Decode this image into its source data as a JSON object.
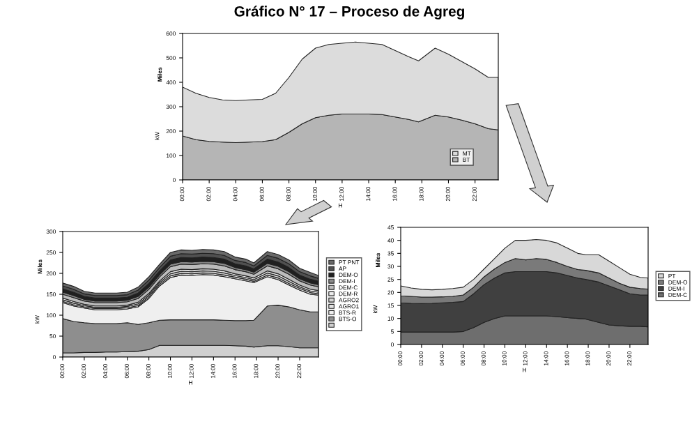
{
  "chart_data": [
    {
      "type": "area",
      "stacked": true,
      "title": "Gráfico N° 17 – Proceso de Agreg",
      "ylabel": "kW",
      "xlabel": "H",
      "annotations": [
        "Miles"
      ],
      "legend": "bottom right",
      "grid": false,
      "x": [
        0,
        1,
        2,
        3,
        4,
        5,
        6,
        7,
        8,
        9,
        10,
        11,
        12,
        13,
        14,
        15,
        16,
        17,
        17.75,
        19,
        20,
        21,
        22,
        23,
        23.75
      ],
      "xlim": [
        0,
        23.75
      ],
      "xticks": [
        {
          "value": 0,
          "label": "00:00"
        },
        {
          "value": 2,
          "label": "02:00"
        },
        {
          "value": 4,
          "label": "04:00"
        },
        {
          "value": 6,
          "label": "06:00"
        },
        {
          "value": 8,
          "label": "08:00"
        },
        {
          "value": 10,
          "label": "10:00"
        },
        {
          "value": 12,
          "label": "12:00"
        },
        {
          "value": 14,
          "label": "14:00"
        },
        {
          "value": 16,
          "label": "16:00"
        },
        {
          "value": 18,
          "label": "18:00"
        },
        {
          "value": 20,
          "label": "20:00"
        },
        {
          "value": 22,
          "label": "22:00"
        }
      ],
      "ylim": [
        0,
        600
      ],
      "yticks": [
        0,
        100,
        200,
        300,
        400,
        500,
        600
      ],
      "series": [
        {
          "name": "BT",
          "color": "#b5b5b5",
          "values": [
            180,
            165,
            158,
            155,
            153,
            155,
            157,
            165,
            195,
            230,
            255,
            265,
            270,
            270,
            270,
            268,
            258,
            248,
            238,
            265,
            258,
            245,
            230,
            210,
            205
          ]
        },
        {
          "name": "MT",
          "color": "#dcdcdc",
          "values": [
            200,
            190,
            180,
            173,
            172,
            173,
            173,
            190,
            225,
            265,
            285,
            290,
            290,
            295,
            290,
            287,
            272,
            257,
            250,
            275,
            257,
            240,
            225,
            210,
            215
          ]
        }
      ]
    },
    {
      "type": "area",
      "stacked": true,
      "ylabel": "kW",
      "xlabel": "H",
      "annotations": [
        "Miles"
      ],
      "legend": "right",
      "grid": false,
      "x": [
        0,
        1,
        2,
        3,
        4,
        5,
        6,
        7,
        8,
        9,
        10,
        11,
        12,
        13,
        14,
        15,
        16,
        17,
        17.75,
        19,
        20,
        21,
        22,
        23,
        23.75
      ],
      "xlim": [
        0,
        23.75
      ],
      "xticks": [
        {
          "value": 0,
          "label": "00:00"
        },
        {
          "value": 2,
          "label": "02:00"
        },
        {
          "value": 4,
          "label": "04:00"
        },
        {
          "value": 6,
          "label": "06:00"
        },
        {
          "value": 8,
          "label": "08:00"
        },
        {
          "value": 10,
          "label": "10:00"
        },
        {
          "value": 12,
          "label": "12:00"
        },
        {
          "value": 14,
          "label": "14:00"
        },
        {
          "value": 16,
          "label": "16:00"
        },
        {
          "value": 18,
          "label": "18:00"
        },
        {
          "value": 20,
          "label": "20:00"
        },
        {
          "value": 22,
          "label": "22:00"
        }
      ],
      "ylim": [
        0,
        300
      ],
      "yticks": [
        0,
        50,
        100,
        150,
        200,
        250,
        300
      ],
      "series": [
        {
          "color": "#d0d0d0",
          "values": [
            10,
            10,
            11,
            11,
            12,
            12,
            13,
            14,
            18,
            28,
            28,
            28,
            28,
            28,
            28,
            28,
            27,
            26,
            24,
            27,
            27,
            25,
            22,
            22,
            22
          ]
        },
        {
          "name": "BTS-O",
          "color": "#8e8e8e",
          "values": [
            82,
            75,
            71,
            69,
            68,
            68,
            69,
            64,
            64,
            60,
            61,
            61,
            61,
            61,
            61,
            60,
            60,
            61,
            64,
            95,
            97,
            95,
            91,
            86,
            86
          ]
        },
        {
          "name": "BTS-R",
          "color": "#efefef",
          "values": [
            38,
            37,
            35,
            33,
            33,
            33,
            33,
            42,
            58,
            82,
            101,
            107,
            106,
            108,
            107,
            104,
            100,
            95,
            90,
            70,
            61,
            52,
            47,
            42,
            40
          ]
        },
        {
          "name": "AGRO1",
          "color": "#e2e2e2",
          "values": [
            3,
            3,
            3,
            3,
            3,
            3,
            3,
            3,
            4,
            4,
            4,
            4,
            4,
            4,
            4,
            4,
            4,
            4,
            3,
            4,
            4,
            4,
            4,
            4,
            3
          ]
        },
        {
          "name": "AGRO2",
          "color": "#d4d4d4",
          "values": [
            4,
            4,
            3,
            3,
            3,
            3,
            3,
            4,
            4,
            4,
            5,
            5,
            5,
            5,
            5,
            5,
            4,
            4,
            4,
            5,
            5,
            5,
            4,
            4,
            4
          ]
        },
        {
          "name": "DEM-R",
          "color": "#ececec",
          "values": [
            4,
            4,
            3,
            3,
            3,
            3,
            3,
            4,
            4,
            4,
            5,
            5,
            5,
            5,
            5,
            5,
            4,
            4,
            4,
            5,
            5,
            5,
            4,
            4,
            4
          ]
        },
        {
          "name": "DEM-C",
          "color": "#bcbcbc",
          "values": [
            9,
            9,
            8,
            8,
            8,
            8,
            8,
            9,
            10,
            10,
            12,
            12,
            12,
            12,
            12,
            12,
            10,
            10,
            9,
            12,
            12,
            12,
            10,
            10,
            9
          ]
        },
        {
          "name": "DEM-I",
          "color": "#8a8a8a",
          "values": [
            5,
            5,
            4,
            4,
            4,
            4,
            4,
            5,
            5,
            5,
            6,
            6,
            6,
            6,
            6,
            6,
            5,
            5,
            5,
            6,
            6,
            6,
            5,
            5,
            5
          ]
        },
        {
          "name": "DEM-O",
          "color": "#202020",
          "values": [
            8,
            8,
            7,
            7,
            7,
            7,
            7,
            8,
            9,
            9,
            10,
            10,
            10,
            10,
            10,
            10,
            9,
            9,
            8,
            10,
            10,
            10,
            9,
            9,
            8
          ]
        },
        {
          "name": "AP",
          "color": "#505050",
          "values": [
            7,
            7,
            6,
            6,
            6,
            6,
            6,
            7,
            8,
            8,
            9,
            9,
            9,
            9,
            9,
            9,
            8,
            8,
            7,
            9,
            9,
            9,
            8,
            8,
            7
          ]
        },
        {
          "name": "PT PNT",
          "color": "#6a6a6a",
          "values": [
            7,
            7,
            6,
            6,
            6,
            6,
            6,
            7,
            8,
            8,
            9,
            9,
            9,
            9,
            9,
            9,
            8,
            8,
            7,
            9,
            9,
            9,
            8,
            8,
            7
          ]
        }
      ]
    },
    {
      "type": "area",
      "stacked": true,
      "ylabel": "kW",
      "xlabel": "H",
      "annotations": [
        "Miles"
      ],
      "legend": "right",
      "grid": false,
      "x": [
        0,
        1,
        2,
        3,
        4,
        5,
        6,
        7,
        8,
        9,
        10,
        11,
        12,
        13,
        14,
        15,
        16,
        17,
        17.75,
        19,
        20,
        21,
        22,
        23,
        23.75
      ],
      "xlim": [
        0,
        23.75
      ],
      "xticks": [
        {
          "value": 0,
          "label": "00:00"
        },
        {
          "value": 2,
          "label": "02:00"
        },
        {
          "value": 4,
          "label": "04:00"
        },
        {
          "value": 6,
          "label": "06:00"
        },
        {
          "value": 8,
          "label": "08:00"
        },
        {
          "value": 10,
          "label": "10:00"
        },
        {
          "value": 12,
          "label": "12:00"
        },
        {
          "value": 14,
          "label": "14:00"
        },
        {
          "value": 16,
          "label": "16:00"
        },
        {
          "value": 18,
          "label": "18:00"
        },
        {
          "value": 20,
          "label": "20:00"
        },
        {
          "value": 22,
          "label": "22:00"
        }
      ],
      "ylim": [
        0,
        45
      ],
      "yticks": [
        0,
        5,
        10,
        15,
        20,
        25,
        30,
        35,
        40,
        45
      ],
      "series": [
        {
          "name": "DEM-C",
          "color": "#6e6e6e",
          "values": [
            4.8,
            4.8,
            4.8,
            4.8,
            4.8,
            4.8,
            5,
            6.5,
            8.5,
            10,
            11,
            11,
            11,
            11,
            11,
            10.7,
            10.3,
            10,
            9.8,
            8.5,
            7.5,
            7.2,
            7,
            7,
            6.8
          ]
        },
        {
          "name": "DEM-I",
          "color": "#404040",
          "values": [
            11.2,
            11,
            10.9,
            11,
            11.2,
            11.4,
            11.5,
            13,
            14.5,
            15.5,
            16.5,
            17,
            17,
            17,
            17,
            16.8,
            16.2,
            15.5,
            15.2,
            15.5,
            15,
            13.8,
            12.5,
            12,
            12.2
          ]
        },
        {
          "name": "DEM-O",
          "color": "#7a7a7a",
          "values": [
            2.7,
            2.7,
            2.5,
            2.4,
            2.3,
            2.3,
            2.5,
            2.5,
            3,
            3.5,
            4,
            5,
            4.5,
            5,
            4.7,
            4,
            3.5,
            3.3,
            3.5,
            3.5,
            3,
            2.5,
            2.5,
            2.5,
            2.3
          ]
        },
        {
          "name": "PT",
          "color": "#d8d8d8",
          "values": [
            3.8,
            3.2,
            3,
            2.8,
            2.9,
            3,
            3,
            3,
            3,
            4,
            5.5,
            7,
            7.5,
            7.3,
            7.3,
            7.5,
            7,
            6.2,
            6,
            7,
            6.5,
            6,
            5,
            4.3,
            4.2
          ]
        }
      ]
    }
  ]
}
